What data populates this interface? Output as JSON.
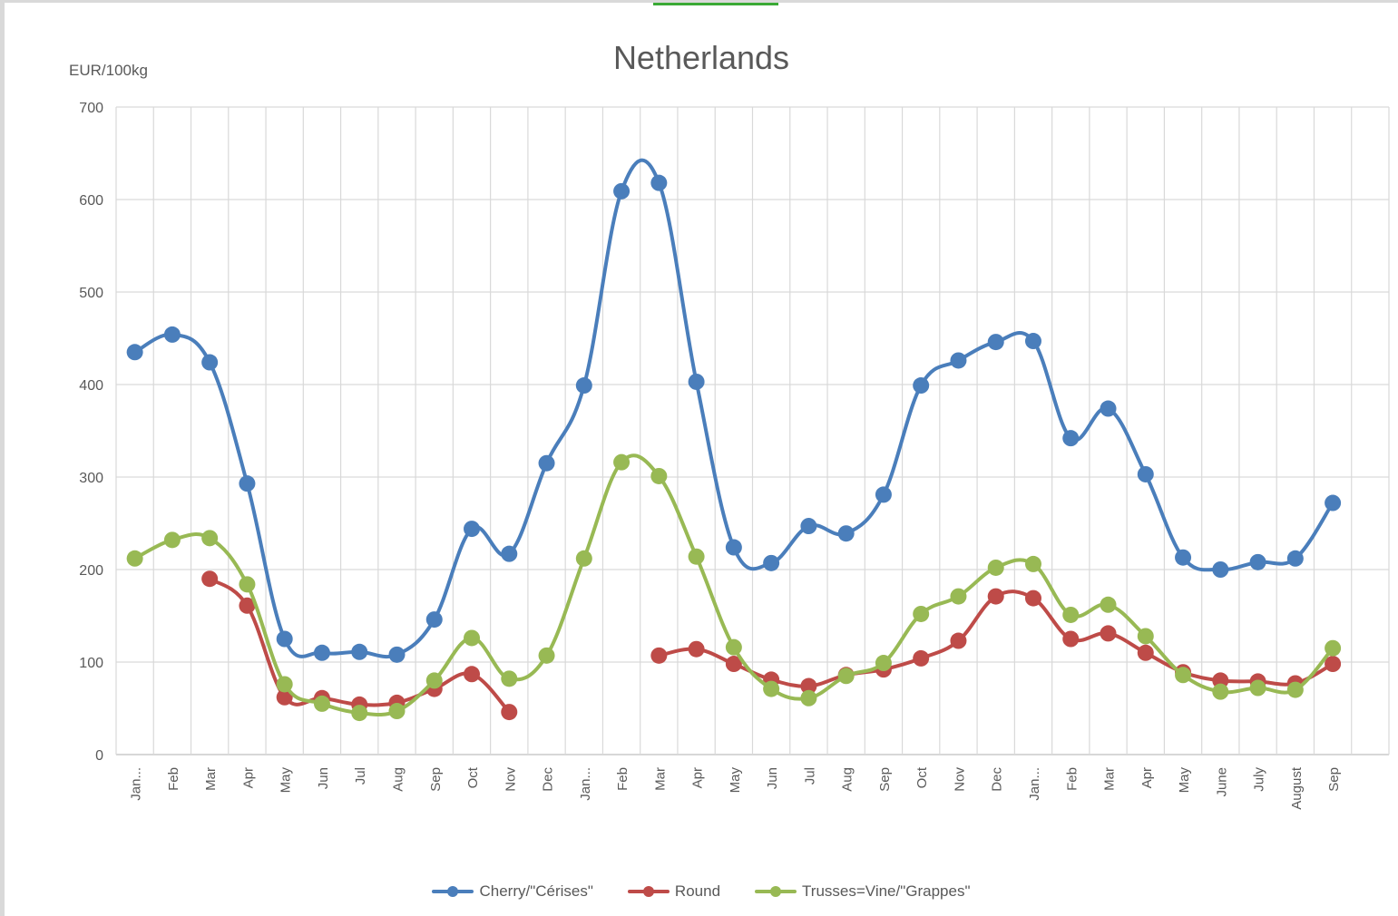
{
  "chart_data": {
    "type": "line",
    "title": "Netherlands",
    "ylabel": "EUR/100kg",
    "xlabel": "",
    "ylim": [
      0,
      700
    ],
    "yticks": [
      0,
      100,
      200,
      300,
      400,
      500,
      600,
      700
    ],
    "grid": true,
    "legend_position": "bottom",
    "smooth": true,
    "categories": [
      "Jan...",
      "Feb",
      "Mar",
      "Apr",
      "May",
      "Jun",
      "Jul",
      "Aug",
      "Sep",
      "Oct",
      "Nov",
      "Dec",
      "Jan...",
      "Feb",
      "Mar",
      "Apr",
      "May",
      "Jun",
      "Jul",
      "Aug",
      "Sep",
      "Oct",
      "Nov",
      "Dec",
      "Jan...",
      "Feb",
      "Mar",
      "Apr",
      "May",
      "June",
      "July",
      "August",
      "Sep"
    ],
    "series": [
      {
        "name": "Cherry/\"Cérises\"",
        "color": "#4a7ebb",
        "values": [
          435,
          454,
          424,
          293,
          125,
          110,
          111,
          108,
          146,
          244,
          217,
          315,
          399,
          609,
          618,
          403,
          224,
          207,
          247,
          239,
          281,
          399,
          426,
          446,
          447,
          342,
          374,
          303,
          213,
          200,
          208,
          212,
          272
        ]
      },
      {
        "name": "Round",
        "color": "#be4b48",
        "values": [
          null,
          null,
          190,
          161,
          62,
          61,
          54,
          56,
          71,
          87,
          46,
          null,
          null,
          null,
          107,
          114,
          98,
          81,
          74,
          86,
          92,
          104,
          123,
          171,
          169,
          125,
          131,
          110,
          89,
          80,
          79,
          77,
          98
        ]
      },
      {
        "name": "Trusses=Vine/\"Grappes\"",
        "color": "#98b954",
        "values": [
          212,
          232,
          234,
          184,
          76,
          55,
          45,
          47,
          80,
          126,
          82,
          107,
          212,
          316,
          301,
          214,
          116,
          71,
          61,
          85,
          99,
          152,
          171,
          202,
          206,
          151,
          162,
          128,
          86,
          68,
          72,
          70,
          115
        ]
      }
    ]
  },
  "window": {
    "accent_color": "#3aaa35"
  }
}
